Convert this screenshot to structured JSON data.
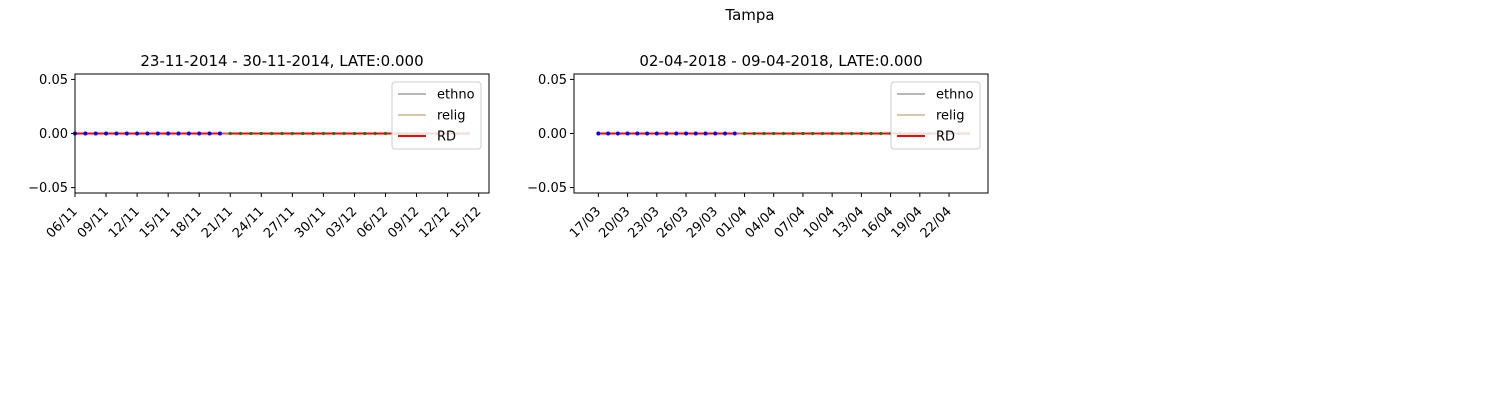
{
  "figure": {
    "suptitle": "Tampa"
  },
  "chart_data": [
    {
      "type": "line",
      "title": "23-11-2014 - 30-11-2014, LATE:0.000",
      "xlabel": "",
      "ylabel": "",
      "ylim": [
        -0.055,
        0.055
      ],
      "yticks": [
        "0.05",
        "0.00",
        "−0.05"
      ],
      "ytick_values": [
        0.05,
        0.0,
        -0.05
      ],
      "xticks": [
        "06/11",
        "09/11",
        "12/11",
        "15/11",
        "18/11",
        "21/11",
        "24/11",
        "27/11",
        "30/11",
        "03/12",
        "06/12",
        "09/12",
        "12/12",
        "15/12"
      ],
      "x_range_days": [
        0,
        40
      ],
      "treatment_day": 15,
      "legend": {
        "position": "top-right",
        "entries": [
          "ethno",
          "relig",
          "RD"
        ]
      },
      "series": [
        {
          "name": "ethno",
          "color": "#a0a0a0",
          "x_start": 0,
          "x_end": 38,
          "y": 0
        },
        {
          "name": "relig",
          "color": "#d2b48c",
          "x_start": 0,
          "x_end": 38,
          "y": 0
        },
        {
          "name": "RD",
          "color": "#ff0000",
          "x_start": 0,
          "x_end": 38,
          "y": 0
        }
      ],
      "points_before": {
        "color": "#0000ff",
        "x_start": 0,
        "x_end": 14,
        "y": 0
      },
      "points_after": {
        "color": "#008000",
        "x_start": 15,
        "x_end": 38,
        "y": 0
      }
    },
    {
      "type": "line",
      "title": "02-04-2018 - 09-04-2018, LATE:0.000",
      "xlabel": "",
      "ylabel": "",
      "ylim": [
        -0.055,
        0.055
      ],
      "yticks": [
        "0.05",
        "0.00",
        "−0.05"
      ],
      "ytick_values": [
        0.05,
        0.0,
        -0.05
      ],
      "xticks": [
        "17/03",
        "20/03",
        "23/03",
        "26/03",
        "29/03",
        "01/04",
        "04/04",
        "07/04",
        "10/04",
        "13/04",
        "16/04",
        "19/04",
        "22/04"
      ],
      "x_range_days": [
        -2.5,
        40
      ],
      "treatment_day": 15,
      "legend": {
        "position": "top-right",
        "entries": [
          "ethno",
          "relig",
          "RD"
        ]
      },
      "series": [
        {
          "name": "ethno",
          "color": "#a0a0a0",
          "x_start": 0,
          "x_end": 38,
          "y": 0
        },
        {
          "name": "relig",
          "color": "#d2b48c",
          "x_start": 0,
          "x_end": 38,
          "y": 0
        },
        {
          "name": "RD",
          "color": "#ff0000",
          "x_start": 0,
          "x_end": 38,
          "y": 0
        }
      ],
      "points_before": {
        "color": "#0000ff",
        "x_start": 0,
        "x_end": 14,
        "y": 0
      },
      "points_after": {
        "color": "#008000",
        "x_start": 15,
        "x_end": 38,
        "y": 0
      }
    }
  ]
}
